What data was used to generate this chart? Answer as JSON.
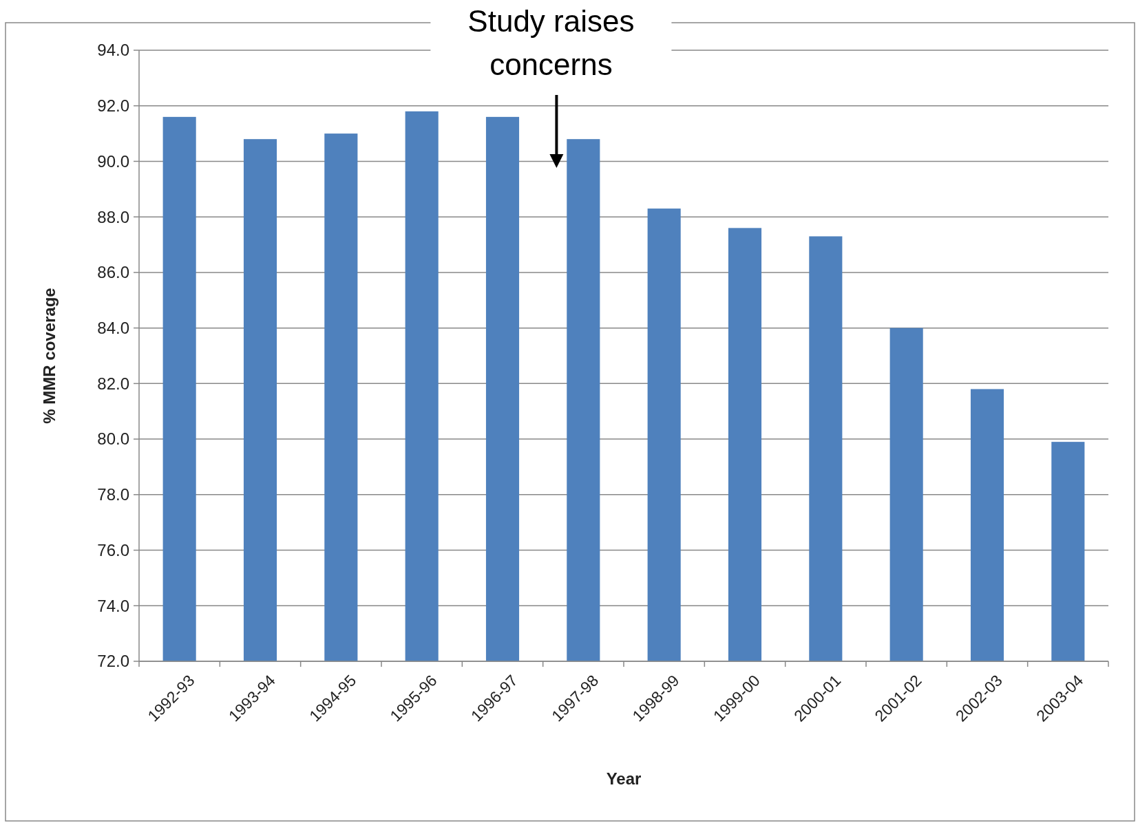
{
  "chart_data": {
    "type": "bar",
    "xlabel": "Year",
    "ylabel": "% MMR coverage",
    "categories": [
      "1992-93",
      "1993-94",
      "1994-95",
      "1995-96",
      "1996-97",
      "1997-98",
      "1998-99",
      "1999-00",
      "2000-01",
      "2001-02",
      "2002-03",
      "2003-04"
    ],
    "values": [
      91.6,
      90.8,
      91.0,
      91.8,
      91.6,
      90.8,
      88.3,
      87.6,
      87.3,
      84.0,
      81.8,
      79.9
    ],
    "color": "#4f81bd",
    "ylim": [
      72,
      94
    ],
    "yticks": [
      {
        "value": 72,
        "label": "72.0"
      },
      {
        "value": 74,
        "label": "74.0"
      },
      {
        "value": 76,
        "label": "76.0"
      },
      {
        "value": 78,
        "label": "78.0"
      },
      {
        "value": 80,
        "label": "80.0"
      },
      {
        "value": 82,
        "label": "82.0"
      },
      {
        "value": 84,
        "label": "84.0"
      },
      {
        "value": 86,
        "label": "86.0"
      },
      {
        "value": 88,
        "label": "88.0"
      },
      {
        "value": 90,
        "label": "90.0"
      },
      {
        "value": 92,
        "label": "92.0"
      },
      {
        "value": 94,
        "label": "94.0"
      }
    ],
    "grid": "y",
    "annotations": [
      "Study raises concerns"
    ]
  }
}
